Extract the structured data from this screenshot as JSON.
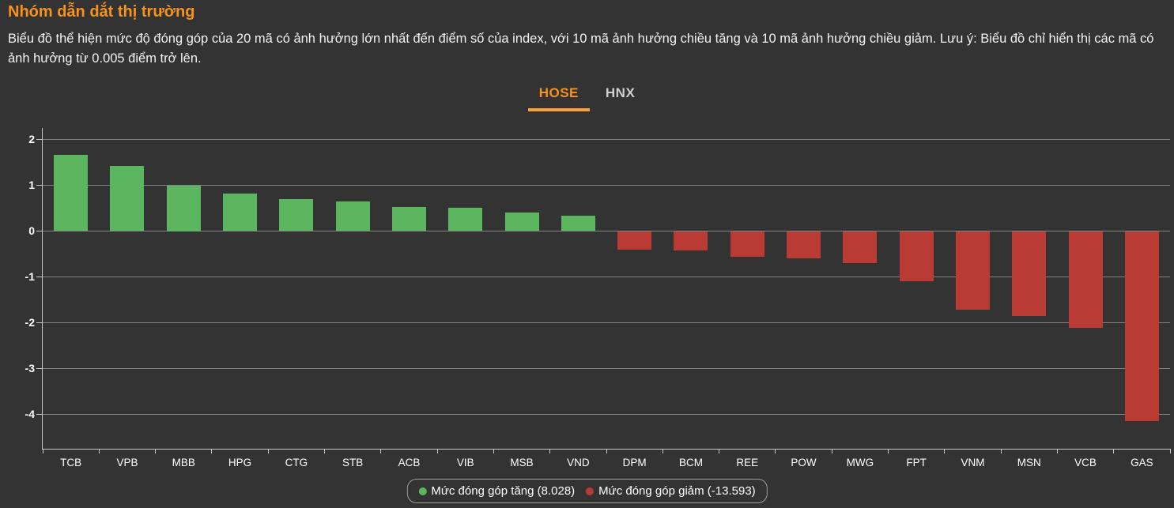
{
  "header": {
    "title": "Nhóm dẫn dắt thị trường",
    "description": "Biểu đồ thể hiện mức độ đóng góp của 20 mã có ảnh hưởng lớn nhất đến điểm số của index, với 10 mã ảnh hưởng chiều tăng và 10 mã ảnh hưởng chiều giảm. Lưu ý: Biểu đồ chỉ hiển thị các mã có ảnh hưởng từ 0.005 điểm trở lên."
  },
  "tabs": [
    {
      "label": "HOSE",
      "active": true
    },
    {
      "label": "HNX",
      "active": false
    }
  ],
  "legend": [
    {
      "label": "Mức đóng góp tăng (8.028)",
      "color": "#5cb65f",
      "icon": "green-dot-icon"
    },
    {
      "label": "Mức đóng góp giảm (-13.593)",
      "color": "#ba3b33",
      "icon": "red-dot-icon"
    }
  ],
  "colors": {
    "background": "#333333",
    "accent_orange": "#f6921e",
    "tab_underline": "#f9a13a",
    "positive": "#5cb65f",
    "negative": "#ba3b33",
    "gridline": "#828282",
    "axis": "#c9c9c9",
    "text": "#f2f2f2"
  },
  "chart_data": {
    "type": "bar",
    "title": "Nhóm dẫn dắt thị trường",
    "categories": [
      "TCB",
      "VPB",
      "MBB",
      "HPG",
      "CTG",
      "STB",
      "ACB",
      "VIB",
      "MSB",
      "VND",
      "DPM",
      "BCM",
      "REE",
      "POW",
      "MWG",
      "FPT",
      "VNM",
      "MSN",
      "VCB",
      "GAS"
    ],
    "values": [
      1.66,
      1.42,
      1.0,
      0.82,
      0.69,
      0.65,
      0.53,
      0.51,
      0.4,
      0.34,
      -0.41,
      -0.43,
      -0.56,
      -0.59,
      -0.7,
      -1.09,
      -1.72,
      -1.85,
      -2.11,
      -4.15
    ],
    "positive_total": 8.028,
    "negative_total": -13.593,
    "xlabel": "",
    "ylabel": "",
    "yticks": [
      2,
      1,
      0,
      -1,
      -2,
      -3,
      -4
    ],
    "ylim": [
      -4.75,
      2.25
    ],
    "grid": true,
    "legend_position": "bottom"
  }
}
